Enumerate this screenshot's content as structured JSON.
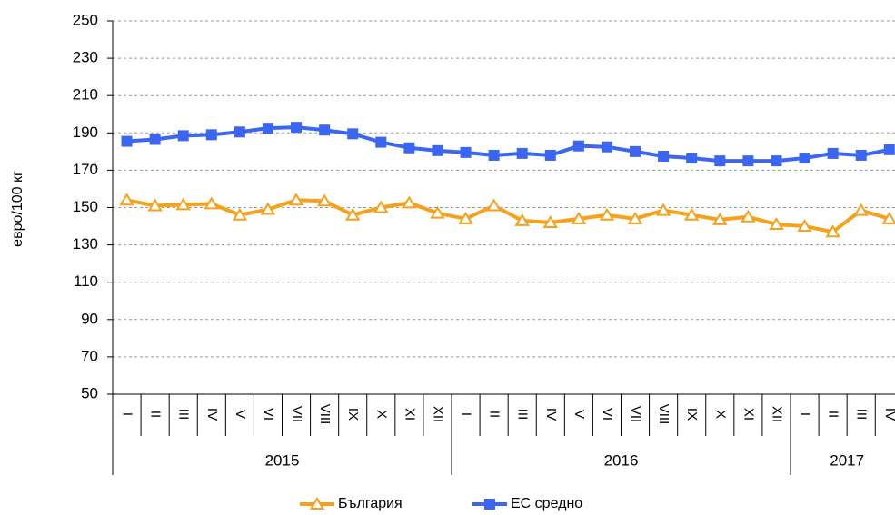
{
  "chart_data": {
    "type": "line",
    "y_label": "евро/100 кг",
    "category_groups": [
      {
        "label": "2015",
        "categories": [
          "I",
          "II",
          "III",
          "IV",
          "V",
          "VI",
          "VII",
          "VIII",
          "IX",
          "X",
          "XI",
          "XII"
        ]
      },
      {
        "label": "2016",
        "categories": [
          "I",
          "II",
          "III",
          "IV",
          "V",
          "VI",
          "VII",
          "VIII",
          "IX",
          "X",
          "XI",
          "XII"
        ]
      },
      {
        "label": "2017",
        "categories": [
          "I",
          "II",
          "III",
          "IV"
        ]
      }
    ],
    "series": [
      {
        "name": "България",
        "color": "#f7a11a",
        "marker": "triangle",
        "values": [
          154,
          151,
          151.5,
          152,
          146,
          149,
          154,
          153.5,
          146,
          150,
          152.5,
          147,
          144,
          151,
          143,
          142,
          144,
          146,
          144,
          148.5,
          146,
          143.5,
          145,
          141,
          140,
          137,
          148.5,
          144
        ]
      },
      {
        "name": "ЕС средно",
        "color": "#3a66f2",
        "marker": "square",
        "values": [
          185.5,
          186.5,
          188.5,
          189,
          190.5,
          192.5,
          193,
          191.5,
          189.5,
          185,
          182,
          180.5,
          179.5,
          178,
          179,
          178,
          183,
          182.5,
          180,
          177.5,
          176.5,
          175,
          175,
          175,
          176.5,
          179,
          178,
          181
        ]
      }
    ],
    "ylim": [
      50,
      250
    ],
    "yticks": [
      50,
      70,
      90,
      110,
      130,
      150,
      170,
      190,
      210,
      230,
      250
    ],
    "grid": true
  }
}
